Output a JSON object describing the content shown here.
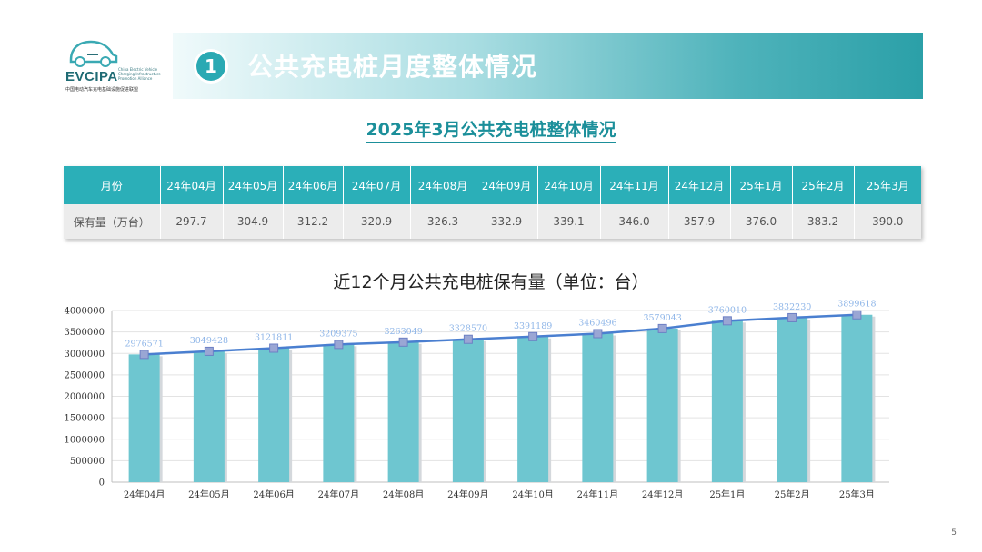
{
  "logo": {
    "text": "EVCIPA",
    "sub": "China Electric Vehicle Charging Infrastructure Promotion Alliance",
    "cn": "中国电动汽车充电基础设施促进联盟"
  },
  "header": {
    "badge": "1",
    "title": "公共充电桩月度整体情况"
  },
  "subtitle": "2025年3月公共充电桩整体情况",
  "table": {
    "row_header_1": "月份",
    "row_header_2": "保有量（万台）",
    "months": [
      "24年04月",
      "24年05月",
      "24年06月",
      "24年07月",
      "24年08月",
      "24年09月",
      "24年10月",
      "24年11月",
      "24年12月",
      "25年1月",
      "25年2月",
      "25年3月"
    ],
    "values": [
      "297.7",
      "304.9",
      "312.2",
      "320.9",
      "326.3",
      "332.9",
      "339.1",
      "346.0",
      "357.9",
      "376.0",
      "383.2",
      "390.0"
    ]
  },
  "chart_title": "近12个月公共充电桩保有量（单位：台）",
  "page_number": "5",
  "colors": {
    "teal": "#2bafb8",
    "bar": "#6ec6d0",
    "line": "#4a7fd0"
  },
  "chart_data": {
    "type": "bar",
    "categories": [
      "24年04月",
      "24年05月",
      "24年06月",
      "24年07月",
      "24年08月",
      "24年09月",
      "24年10月",
      "24年11月",
      "24年12月",
      "25年1月",
      "25年2月",
      "25年3月"
    ],
    "values": [
      2976571,
      3049428,
      3121811,
      3209375,
      3263049,
      3328570,
      3391189,
      3460496,
      3579043,
      3760010,
      3832230,
      3899618
    ],
    "data_labels": [
      "2976571",
      "3049428",
      "3121811",
      "3209375",
      "3263049",
      "3328570",
      "3391189",
      "3460496",
      "3579043",
      "3760010",
      "3832230",
      "3899618"
    ],
    "overlay": "line",
    "ylim": [
      0,
      4000000
    ],
    "yticks": [
      0,
      500000,
      1000000,
      1500000,
      2000000,
      2500000,
      3000000,
      3500000,
      4000000
    ],
    "ytick_labels": [
      "0",
      "500000",
      "1000000",
      "1500000",
      "2000000",
      "2500000",
      "3000000",
      "3500000",
      "4000000"
    ],
    "grid": true,
    "title": "近12个月公共充电桩保有量（单位：台）"
  }
}
